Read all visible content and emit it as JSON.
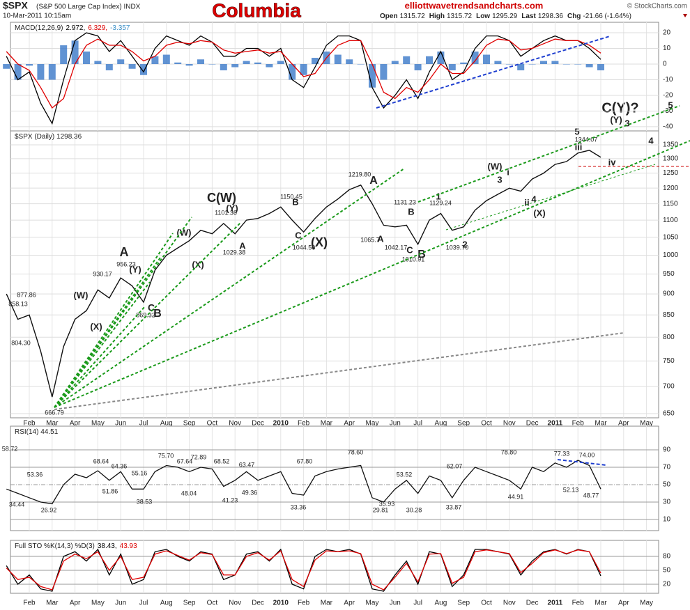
{
  "header": {
    "symbol": "$SPX",
    "name": "(S&P 500 Large Cap Index) INDX",
    "date": "10-Mar-2011 10:15am",
    "title": "Columbia",
    "site": "elliottwavetrendsandcharts.com",
    "credit": "© StockCharts.com",
    "quote": [
      {
        "label": "Open",
        "value": "1315.72"
      },
      {
        "label": "High",
        "value": "1315.72"
      },
      {
        "label": "Low",
        "value": "1295.29"
      },
      {
        "label": "Last",
        "value": "1298.36"
      },
      {
        "label": "Chg",
        "value": "-21.66 (-1.64%)"
      }
    ]
  },
  "chart_data": [
    {
      "type": "line",
      "title": "$SPX (Daily) 1298.36",
      "log_scale": true,
      "grid": true,
      "categories": [
        null,
        null,
        "Feb",
        null,
        "Mar",
        null,
        "Apr",
        null,
        "May",
        null,
        "Jun",
        null,
        "Jul",
        null,
        "Aug",
        null,
        "Sep",
        null,
        "Oct",
        null,
        "Nov",
        null,
        "Dec",
        null,
        "2010",
        null,
        "Feb",
        null,
        "Mar",
        null,
        "Apr",
        null,
        "May",
        null,
        "Jun",
        null,
        "Jul",
        null,
        "Aug",
        null,
        "Sep",
        null,
        "Oct",
        null,
        "Nov",
        null,
        "Dec",
        null,
        "2011",
        null,
        "Feb",
        null,
        "Mar",
        null,
        "Apr",
        null,
        "May",
        null
      ],
      "ylim": [
        642.6,
        1402
      ],
      "yticks": [
        650,
        700,
        750,
        800,
        850,
        900,
        950,
        1000,
        1050,
        1100,
        1150,
        1200,
        1250,
        1300,
        1350
      ],
      "series": [
        {
          "color": "#111111",
          "values": [
            900,
            840,
            850,
            770,
            680,
            780,
            840,
            860,
            910,
            890,
            940,
            920,
            880,
            960,
            1000,
            1020,
            1040,
            1070,
            1060,
            1090,
            1060,
            1100,
            1105,
            1120,
            1140,
            1100,
            1065,
            1105,
            1140,
            1165,
            1195,
            1210,
            1150,
            1085,
            1080,
            1085,
            1030,
            1100,
            1120,
            1070,
            1080,
            1130,
            1160,
            1180,
            1200,
            1190,
            1230,
            1250,
            1280,
            1290,
            1320,
            1330,
            1305,
            null,
            null,
            null,
            null,
            null
          ]
        }
      ],
      "annotations": [
        {
          "text": "877.86",
          "color": "#222222"
        },
        {
          "text": "858.13",
          "color": "#222222"
        },
        {
          "text": "804.30",
          "color": "#222222"
        },
        {
          "text": "666.79",
          "color": "#222222"
        },
        {
          "text": "930.17",
          "color": "#222222"
        },
        {
          "text": "956.23",
          "color": "#222222"
        },
        {
          "text": "869.32",
          "color": "#222222"
        },
        {
          "text": "1101.36",
          "color": "#222222"
        },
        {
          "text": "1029.38",
          "color": "#222222"
        },
        {
          "text": "1150.45",
          "color": "#222222"
        },
        {
          "text": "1044.50",
          "color": "#222222"
        },
        {
          "text": "1219.80",
          "color": "#222222"
        },
        {
          "text": "1065.7",
          "color": "#222222"
        },
        {
          "text": "1131.23",
          "color": "#222222"
        },
        {
          "text": "1042.17",
          "color": "#222222"
        },
        {
          "text": "1010.91",
          "color": "#222222"
        },
        {
          "text": "1129.24",
          "color": "#222222"
        },
        {
          "text": "1039.70",
          "color": "#222222"
        },
        {
          "text": "1344.07",
          "color": "#222222"
        },
        {
          "text": "A",
          "color": "#1a1acc"
        },
        {
          "text": "B",
          "color": "#1a1acc"
        },
        {
          "text": "C(W)",
          "color": "#1a1acc"
        },
        {
          "text": "(X)",
          "color": "#1a1acc"
        },
        {
          "text": "A",
          "color": "#1a1acc"
        },
        {
          "text": "B",
          "color": "#1a1acc"
        },
        {
          "text": "C(Y)?",
          "color": "#1a1acc"
        },
        {
          "text": "(W)",
          "color": "#dd0000"
        },
        {
          "text": "(X)",
          "color": "#dd0000"
        },
        {
          "text": "(Y)",
          "color": "#dd0000"
        },
        {
          "text": "(W)",
          "color": "#dd0000"
        },
        {
          "text": "(X)",
          "color": "#dd0000"
        },
        {
          "text": "(Y)",
          "color": "#dd0000"
        },
        {
          "text": "(W)",
          "color": "#dd0000"
        },
        {
          "text": "(X)",
          "color": "#dd0000"
        },
        {
          "text": "(Y)",
          "color": "#dd0000"
        },
        {
          "text": "C",
          "color": "#118811"
        },
        {
          "text": "A",
          "color": "#118811"
        },
        {
          "text": "B",
          "color": "#118811"
        },
        {
          "text": "C",
          "color": "#118811"
        },
        {
          "text": "A",
          "color": "#118811"
        },
        {
          "text": "B",
          "color": "#118811"
        },
        {
          "text": "C",
          "color": "#118811"
        },
        {
          "text": "1",
          "color": "#118811"
        },
        {
          "text": "2",
          "color": "#118811"
        },
        {
          "text": "i",
          "color": "#118811"
        },
        {
          "text": "ii",
          "color": "#118811"
        },
        {
          "text": "iii",
          "color": "#118811"
        },
        {
          "text": "iv",
          "color": "#118811"
        },
        {
          "text": "3",
          "color": "#118811"
        },
        {
          "text": "4",
          "color": "#118811"
        },
        {
          "text": "5",
          "color": "#118811"
        },
        {
          "text": "3",
          "color": "#888888"
        },
        {
          "text": "4",
          "color": "#888888"
        },
        {
          "text": "5",
          "color": "#888888"
        }
      ]
    },
    {
      "type": "line",
      "title": "MACD(12,26,9)",
      "legend": [
        {
          "text": "2.972,",
          "color": "#000000"
        },
        {
          "text": "6.329,",
          "color": "#dd0000"
        },
        {
          "text": "-3.357",
          "color": "#3a8fc8"
        }
      ],
      "grid": true,
      "ylim": [
        -42.7,
        26.7
      ],
      "yticks": [
        20,
        10,
        0,
        -10,
        -20,
        -30,
        -40
      ],
      "series": [
        {
          "style": "bars",
          "color": "#3a78c8",
          "values": [
            -3,
            -10,
            -1,
            -10,
            -10,
            12,
            15,
            8,
            2,
            -4,
            3,
            -3,
            -7,
            5,
            6,
            1,
            -1,
            3,
            0,
            -4,
            -2,
            2,
            1,
            -2,
            2,
            -10,
            -7,
            4,
            8,
            6,
            3,
            0,
            -15,
            -10,
            2,
            5,
            -4,
            5,
            8,
            -4,
            1,
            8,
            6,
            2,
            0,
            -4,
            0,
            2,
            2,
            0,
            0,
            -2,
            -4,
            null,
            null,
            null,
            null,
            null
          ]
        },
        {
          "color": "#000000",
          "values": [
            5,
            -10,
            -5,
            -25,
            -38,
            -10,
            15,
            20,
            18,
            8,
            15,
            5,
            -5,
            10,
            18,
            15,
            12,
            18,
            14,
            5,
            5,
            10,
            10,
            5,
            10,
            -10,
            -15,
            -2,
            12,
            18,
            18,
            15,
            -15,
            -28,
            -20,
            -10,
            -22,
            -5,
            8,
            -10,
            -5,
            10,
            18,
            18,
            15,
            5,
            10,
            15,
            18,
            15,
            15,
            10,
            3,
            null,
            null,
            null,
            null,
            null
          ]
        },
        {
          "color": "#e00000",
          "values": [
            8,
            0,
            -4,
            -15,
            -28,
            -22,
            0,
            12,
            16,
            12,
            12,
            8,
            2,
            5,
            12,
            14,
            13,
            15,
            14,
            9,
            7,
            8,
            9,
            7,
            8,
            0,
            -8,
            -6,
            4,
            12,
            15,
            15,
            0,
            -18,
            -22,
            -15,
            -18,
            -10,
            0,
            -6,
            -6,
            2,
            12,
            16,
            15,
            9,
            10,
            13,
            16,
            15,
            15,
            12,
            7,
            null,
            null,
            null,
            null,
            null
          ]
        }
      ]
    },
    {
      "type": "line",
      "title": "RSI(14) 44.51",
      "grid": true,
      "ylim": [
        -2.8,
        117.2
      ],
      "yticks": [
        10,
        30,
        50,
        70,
        90
      ],
      "series": [
        {
          "color": "#111111",
          "values": [
            45,
            40,
            35,
            30,
            28,
            50,
            62,
            58,
            66,
            55,
            65,
            45,
            45,
            65,
            72,
            70,
            65,
            70,
            68,
            48,
            55,
            65,
            55,
            60,
            65,
            40,
            38,
            60,
            65,
            68,
            70,
            72,
            35,
            30,
            45,
            55,
            40,
            60,
            55,
            35,
            55,
            70,
            65,
            60,
            55,
            45,
            70,
            65,
            75,
            70,
            78,
            72,
            45,
            null,
            null,
            null,
            null,
            null
          ]
        }
      ],
      "annotations": [
        {
          "text": "58.72",
          "color": "#222222"
        },
        {
          "text": "53.36",
          "color": "#222222"
        },
        {
          "text": "34.44",
          "color": "#222222"
        },
        {
          "text": "26.92",
          "color": "#222222"
        },
        {
          "text": "68.64",
          "color": "#222222"
        },
        {
          "text": "64.36",
          "color": "#222222"
        },
        {
          "text": "51.86",
          "color": "#222222"
        },
        {
          "text": "55.16",
          "color": "#222222"
        },
        {
          "text": "38.53",
          "color": "#222222"
        },
        {
          "text": "75.70",
          "color": "#222222"
        },
        {
          "text": "67.64",
          "color": "#222222"
        },
        {
          "text": "72.89",
          "color": "#222222"
        },
        {
          "text": "48.04",
          "color": "#222222"
        },
        {
          "text": "68.52",
          "color": "#222222"
        },
        {
          "text": "41.23",
          "color": "#222222"
        },
        {
          "text": "63.47",
          "color": "#222222"
        },
        {
          "text": "49.36",
          "color": "#222222"
        },
        {
          "text": "67.80",
          "color": "#222222"
        },
        {
          "text": "33.36",
          "color": "#222222"
        },
        {
          "text": "78.60",
          "color": "#222222"
        },
        {
          "text": "53.52",
          "color": "#222222"
        },
        {
          "text": "35.93",
          "color": "#222222"
        },
        {
          "text": "29.81",
          "color": "#222222"
        },
        {
          "text": "30.28",
          "color": "#222222"
        },
        {
          "text": "62.07",
          "color": "#222222"
        },
        {
          "text": "33.87",
          "color": "#222222"
        },
        {
          "text": "78.80",
          "color": "#222222"
        },
        {
          "text": "44.91",
          "color": "#222222"
        },
        {
          "text": "77.33",
          "color": "#222222"
        },
        {
          "text": "74.00",
          "color": "#222222"
        },
        {
          "text": "52.13",
          "color": "#222222"
        },
        {
          "text": "48.77",
          "color": "#222222"
        }
      ]
    },
    {
      "type": "line",
      "title": "Full STO %K(14,3) %D(3)",
      "legend": [
        {
          "text": "38.43,",
          "color": "#000000"
        },
        {
          "text": "43.93",
          "color": "#dd0000"
        }
      ],
      "grid": true,
      "ylim": [
        0.5,
        114.5
      ],
      "yticks": [
        20,
        50,
        80
      ],
      "series": [
        {
          "color": "#000000",
          "values": [
            60,
            20,
            40,
            10,
            5,
            80,
            90,
            70,
            95,
            40,
            85,
            20,
            30,
            90,
            95,
            80,
            70,
            90,
            85,
            30,
            40,
            85,
            90,
            70,
            95,
            20,
            10,
            80,
            95,
            90,
            95,
            85,
            10,
            5,
            40,
            70,
            20,
            90,
            85,
            15,
            40,
            95,
            95,
            90,
            85,
            40,
            70,
            90,
            95,
            85,
            95,
            90,
            38,
            null,
            null,
            null,
            null,
            null
          ]
        },
        {
          "color": "#e00000",
          "values": [
            55,
            30,
            35,
            15,
            8,
            70,
            85,
            75,
            90,
            50,
            80,
            30,
            35,
            85,
            92,
            82,
            72,
            88,
            84,
            40,
            40,
            80,
            88,
            72,
            92,
            30,
            15,
            72,
            92,
            90,
            92,
            86,
            20,
            8,
            35,
            65,
            25,
            85,
            86,
            22,
            35,
            90,
            94,
            90,
            86,
            45,
            65,
            88,
            94,
            86,
            94,
            90,
            44,
            null,
            null,
            null,
            null,
            null
          ]
        }
      ]
    }
  ]
}
